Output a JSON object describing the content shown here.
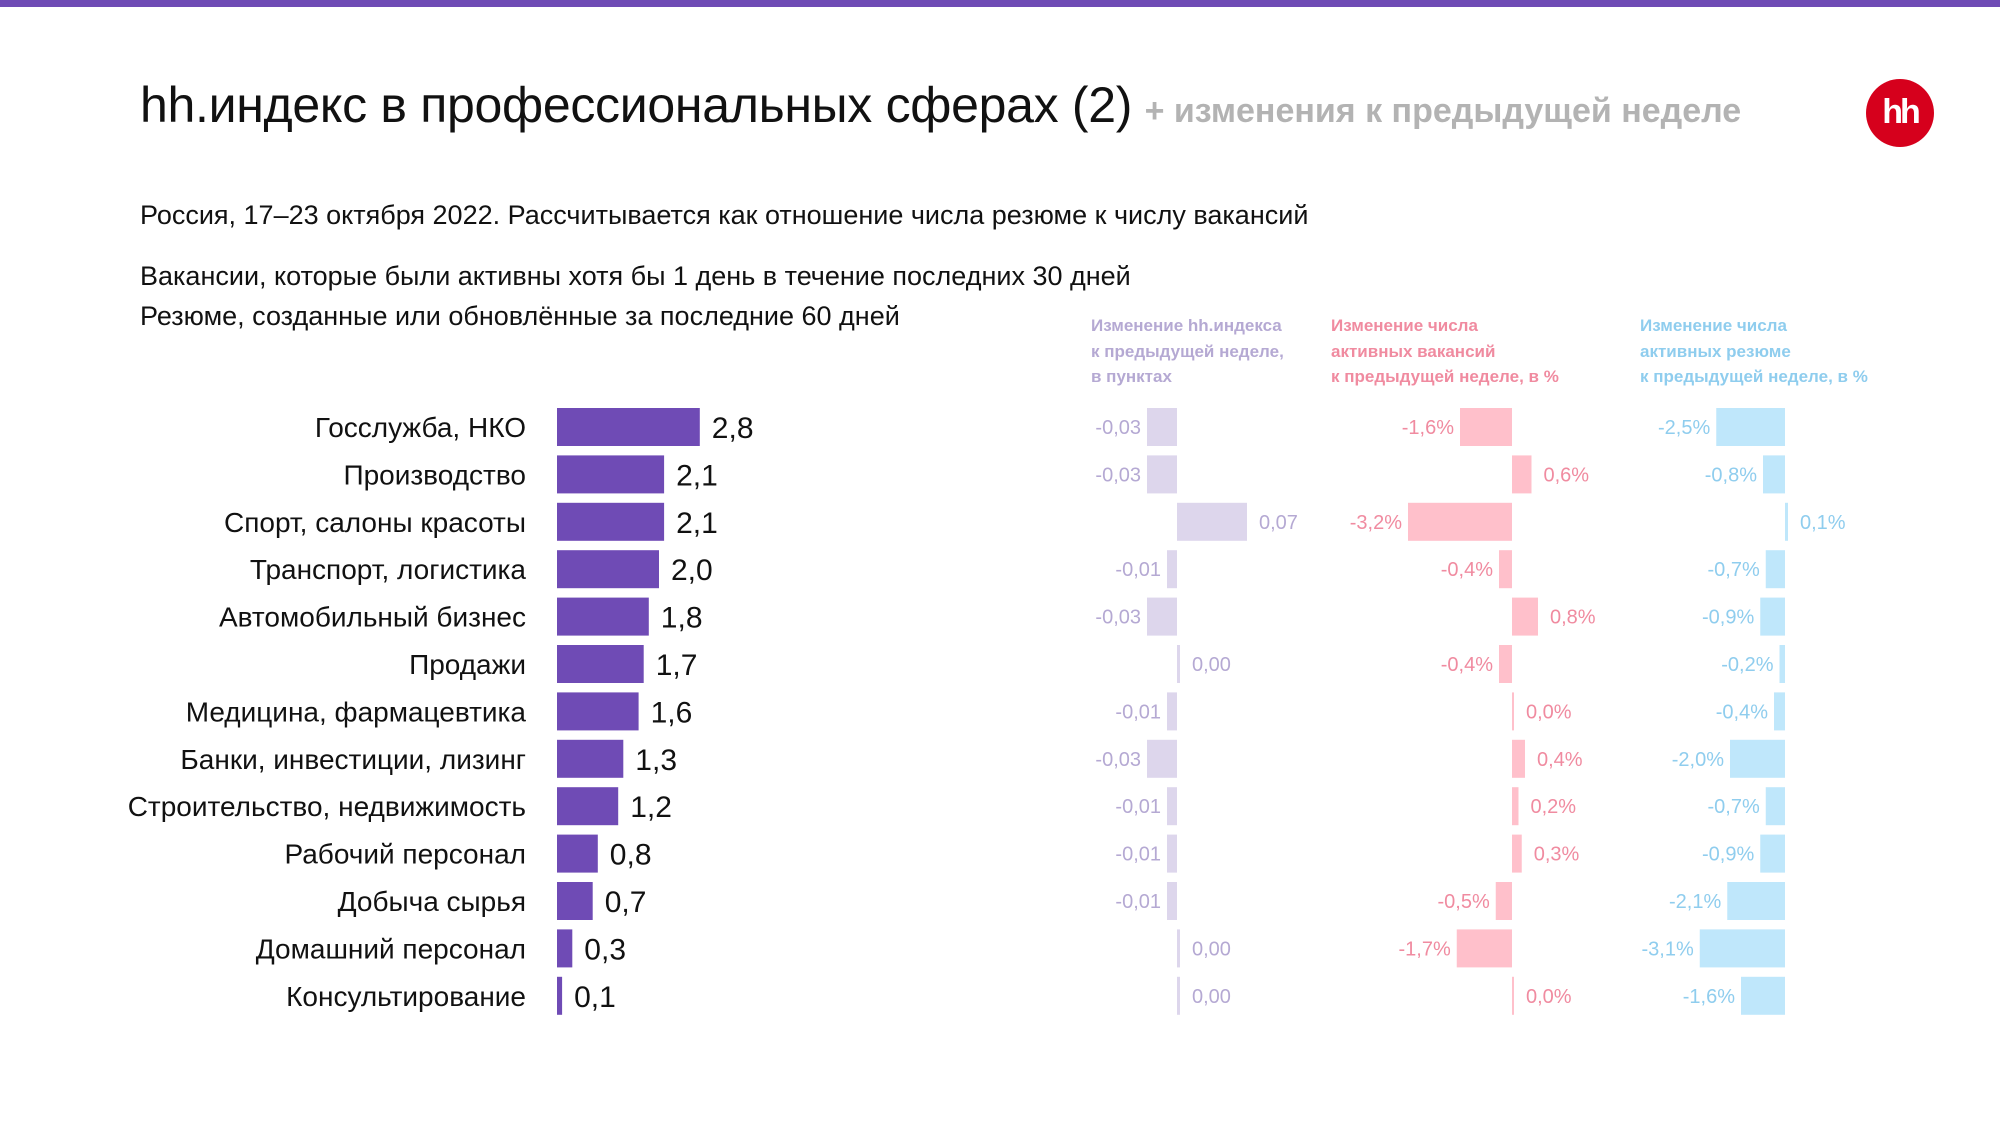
{
  "header": {
    "title": "hh.индекс в профессиональных сферах (2)",
    "title_suffix": "+ изменения к предыдущей неделе",
    "logo": "hh",
    "subtitle_lines": [
      "Россия, 17–23 октября 2022. Рассчитывается как отношение числа резюме к числу вакансий",
      "Вакансии, которые были активны хотя бы 1 день в течение последних 30 дней",
      "Резюме, созданные или обновлённые за последние 60 дней"
    ]
  },
  "colors": {
    "accent_stripe": "#6f4bb5",
    "main_bar": "#6f4bb5",
    "index_change": "#ddd6ec",
    "index_change_text": "#b5a9d3",
    "vacancy_change": "#ffc0cb",
    "vacancy_change_text": "#f08ba0",
    "resume_change": "#bfe7fb",
    "resume_change_text": "#8fcdee",
    "logo_bg": "#d6001c"
  },
  "column_headers": {
    "index": [
      "Изменение hh.индекса",
      "к предыдущей неделе,",
      "в пунктах"
    ],
    "vacancies": [
      "Изменение числа",
      "активных вакансий",
      "к предыдущей неделе, в %"
    ],
    "resumes": [
      "Изменение числа",
      "активных резюме",
      "к предыдущей неделе, в %"
    ]
  },
  "chart_data": [
    {
      "type": "bar",
      "orientation": "horizontal",
      "categories": [
        "Госслужба, НКО",
        "Производство",
        "Спорт, салоны красоты",
        "Транспорт, логистика",
        "Автомобильный бизнес",
        "Продажи",
        "Медицина, фармацевтика",
        "Банки, инвестиции, лизинг",
        "Строительство, недвижимость",
        "Рабочий персонал",
        "Добыча сырья",
        "Домашний персонал",
        "Консультирование"
      ],
      "values": [
        2.8,
        2.1,
        2.1,
        2.0,
        1.8,
        1.7,
        1.6,
        1.3,
        1.2,
        0.8,
        0.7,
        0.3,
        0.1
      ],
      "labels": [
        "2,8",
        "2,1",
        "2,1",
        "2,0",
        "1,8",
        "1,7",
        "1,6",
        "1,3",
        "1,2",
        "0,8",
        "0,7",
        "0,3",
        "0,1"
      ],
      "xlim": [
        0,
        2.8
      ]
    },
    {
      "type": "bar",
      "orientation": "horizontal",
      "values": [
        -0.03,
        -0.03,
        0.07,
        -0.01,
        -0.03,
        0.0,
        -0.01,
        -0.03,
        -0.01,
        -0.01,
        -0.01,
        0.0,
        0.0
      ],
      "labels": [
        "-0,03",
        "-0,03",
        "0,07",
        "-0,01",
        "-0,03",
        "0,00",
        "-0,01",
        "-0,03",
        "-0,01",
        "-0,01",
        "-0,01",
        "0,00",
        "0,00"
      ]
    },
    {
      "type": "bar",
      "orientation": "horizontal",
      "values": [
        -1.6,
        0.6,
        -3.2,
        -0.4,
        0.8,
        -0.4,
        0.0,
        0.4,
        0.2,
        0.3,
        -0.5,
        -1.7,
        0.0
      ],
      "labels": [
        "-1,6%",
        "0,6%",
        "-3,2%",
        "-0,4%",
        "0,8%",
        "-0,4%",
        "0,0%",
        "0,4%",
        "0,2%",
        "0,3%",
        "-0,5%",
        "-1,7%",
        "0,0%"
      ]
    },
    {
      "type": "bar",
      "orientation": "horizontal",
      "values": [
        -2.5,
        -0.8,
        0.1,
        -0.7,
        -0.9,
        -0.2,
        -0.4,
        -2.0,
        -0.7,
        -0.9,
        -2.1,
        -3.1,
        -1.6
      ],
      "labels": [
        "-2,5%",
        "-0,8%",
        "0,1%",
        "-0,7%",
        "-0,9%",
        "-0,2%",
        "-0,4%",
        "-2,0%",
        "-0,7%",
        "-0,9%",
        "-2,1%",
        "-3,1%",
        "-1,6%"
      ]
    }
  ]
}
